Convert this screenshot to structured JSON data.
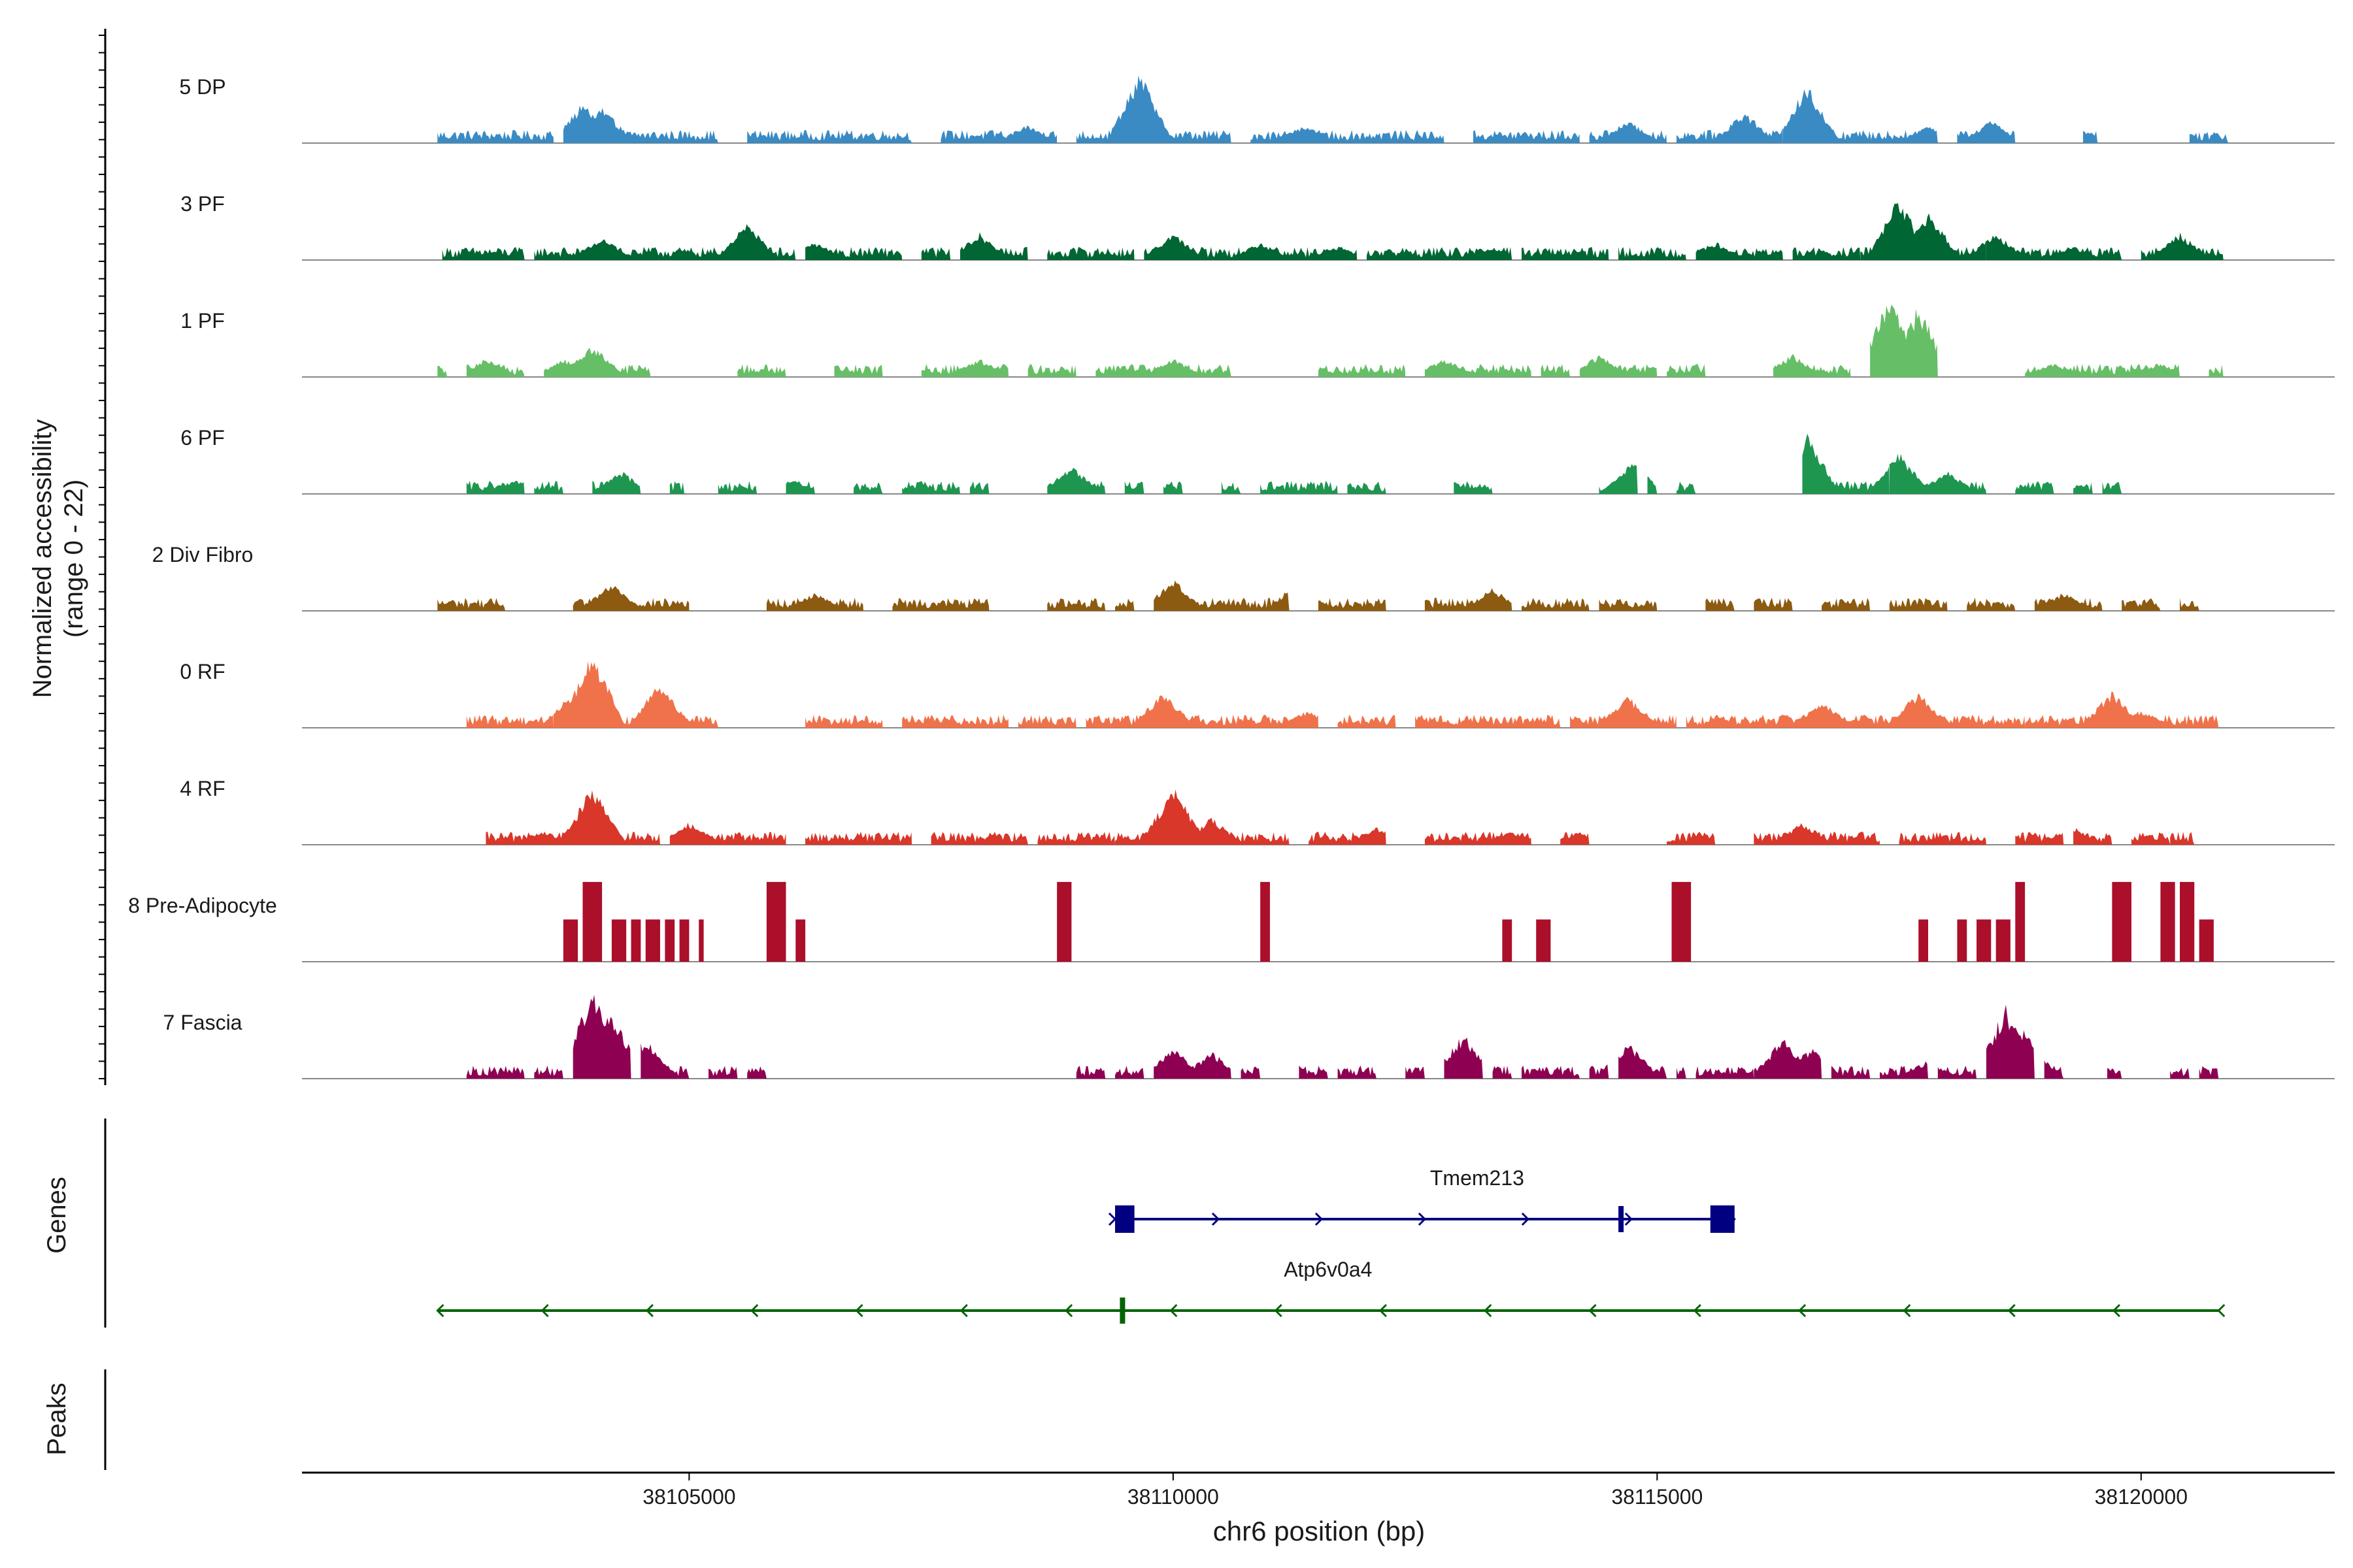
{
  "chart_data": {
    "type": "area",
    "title": "",
    "chromosome": "chr6",
    "xlabel": "chr6 position (bp)",
    "ylabel": "Normalized accessibility",
    "ylabel_range": "(range 0 - 22)",
    "xlim": [
      38101000,
      38122000
    ],
    "ylim": [
      0,
      22
    ],
    "x_ticks": [
      38105000,
      38110000,
      38115000,
      38120000
    ],
    "x_tick_labels": [
      "38105000",
      "38110000",
      "38115000",
      "38120000"
    ],
    "tracks": [
      {
        "name": "5 DP",
        "color": "#3a8bc4",
        "regions": [
          [
            38102400,
            38103600
          ],
          [
            38103700,
            38105300
          ],
          [
            38105600,
            38107300
          ],
          [
            38107600,
            38108800
          ],
          [
            38109000,
            38110600
          ],
          [
            38110800,
            38112800
          ],
          [
            38113100,
            38114200
          ],
          [
            38114300,
            38115100
          ],
          [
            38115200,
            38116300
          ],
          [
            38116300,
            38117900
          ],
          [
            38118100,
            38118700
          ],
          [
            38119400,
            38119550
          ],
          [
            38120500,
            38120900
          ]
        ],
        "peaks": [
          [
            38103900,
            9
          ],
          [
            38104100,
            8
          ],
          [
            38108500,
            4
          ],
          [
            38109650,
            16
          ],
          [
            38111350,
            4
          ],
          [
            38114700,
            5
          ],
          [
            38115900,
            7
          ],
          [
            38116550,
            13
          ],
          [
            38117800,
            4
          ],
          [
            38118450,
            5
          ],
          [
            38119400,
            3
          ]
        ]
      },
      {
        "name": "3 PF",
        "color": "#006633",
        "regions": [
          [
            38102450,
            38103300
          ],
          [
            38103400,
            38106100
          ],
          [
            38106200,
            38107200
          ],
          [
            38107400,
            38107700
          ],
          [
            38107800,
            38108500
          ],
          [
            38108700,
            38109600
          ],
          [
            38109700,
            38111900
          ],
          [
            38112000,
            38113500
          ],
          [
            38113600,
            38114500
          ],
          [
            38114600,
            38115300
          ],
          [
            38115400,
            38116300
          ],
          [
            38116400,
            38117100
          ],
          [
            38117100,
            38118400
          ],
          [
            38118400,
            38119800
          ],
          [
            38120000,
            38120850
          ]
        ],
        "peaks": [
          [
            38104100,
            5
          ],
          [
            38105600,
            8
          ],
          [
            38106300,
            4
          ],
          [
            38108000,
            6
          ],
          [
            38110000,
            6
          ],
          [
            38110900,
            4
          ],
          [
            38111700,
            3
          ],
          [
            38113300,
            3
          ],
          [
            38115600,
            4
          ],
          [
            38117500,
            14
          ],
          [
            38117800,
            11
          ],
          [
            38118500,
            6
          ],
          [
            38119300,
            3
          ],
          [
            38120400,
            6
          ]
        ]
      },
      {
        "name": "1 PF",
        "color": "#66bf66",
        "regions": [
          [
            38102400,
            38102500
          ],
          [
            38102700,
            38103300
          ],
          [
            38103500,
            38104600
          ],
          [
            38105500,
            38106000
          ],
          [
            38106500,
            38107000
          ],
          [
            38107400,
            38108300
          ],
          [
            38108500,
            38109000
          ],
          [
            38109200,
            38110600
          ],
          [
            38111500,
            38112400
          ],
          [
            38112600,
            38113700
          ],
          [
            38113800,
            38114100
          ],
          [
            38114200,
            38115000
          ],
          [
            38115100,
            38115500
          ],
          [
            38116200,
            38117000
          ],
          [
            38117200,
            38117900
          ],
          [
            38118800,
            38120400
          ],
          [
            38120700,
            38120850
          ]
        ],
        "peaks": [
          [
            38102900,
            4
          ],
          [
            38103700,
            4
          ],
          [
            38104000,
            7
          ],
          [
            38106200,
            4
          ],
          [
            38108000,
            4
          ],
          [
            38110000,
            4
          ],
          [
            38112800,
            4
          ],
          [
            38114400,
            5
          ],
          [
            38116400,
            5
          ],
          [
            38117400,
            18
          ],
          [
            38117700,
            16
          ],
          [
            38119100,
            3
          ],
          [
            38120200,
            3
          ]
        ]
      },
      {
        "name": "6 PF",
        "color": "#1e9650",
        "regions": [
          [
            38102700,
            38103300
          ],
          [
            38103400,
            38103700
          ],
          [
            38104000,
            38104500
          ],
          [
            38104800,
            38104950
          ],
          [
            38105300,
            38105700
          ],
          [
            38106000,
            38106300
          ],
          [
            38106700,
            38107000
          ],
          [
            38107200,
            38107800
          ],
          [
            38107900,
            38108100
          ],
          [
            38108700,
            38109300
          ],
          [
            38109500,
            38109700
          ],
          [
            38109900,
            38110100
          ],
          [
            38110500,
            38110700
          ],
          [
            38110900,
            38111700
          ],
          [
            38111800,
            38112200
          ],
          [
            38112900,
            38113300
          ],
          [
            38114400,
            38114800
          ],
          [
            38114900,
            38115000
          ],
          [
            38115200,
            38115400
          ],
          [
            38116500,
            38117400
          ],
          [
            38117400,
            38118400
          ],
          [
            38118700,
            38119100
          ],
          [
            38119300,
            38119500
          ],
          [
            38119600,
            38119800
          ]
        ],
        "peaks": [
          [
            38103200,
            3
          ],
          [
            38104300,
            5
          ],
          [
            38106100,
            3
          ],
          [
            38108950,
            6
          ],
          [
            38109400,
            3
          ],
          [
            38114750,
            7
          ],
          [
            38116550,
            13
          ],
          [
            38117500,
            9
          ],
          [
            38118000,
            5
          ]
        ]
      },
      {
        "name": "2 Div Fibro",
        "color": "#8c5a10",
        "regions": [
          [
            38102400,
            38103100
          ],
          [
            38103800,
            38105000
          ],
          [
            38105800,
            38106800
          ],
          [
            38107100,
            38108100
          ],
          [
            38108700,
            38109300
          ],
          [
            38109400,
            38109600
          ],
          [
            38109800,
            38111200
          ],
          [
            38111500,
            38112200
          ],
          [
            38112600,
            38113500
          ],
          [
            38113600,
            38114300
          ],
          [
            38114400,
            38115000
          ],
          [
            38115500,
            38115800
          ],
          [
            38116000,
            38116400
          ],
          [
            38116700,
            38117200
          ],
          [
            38117400,
            38118000
          ],
          [
            38118200,
            38118700
          ],
          [
            38118900,
            38119600
          ],
          [
            38119800,
            38120200
          ],
          [
            38120400,
            38120600
          ]
        ],
        "peaks": [
          [
            38104200,
            6
          ],
          [
            38106300,
            4
          ],
          [
            38110000,
            7
          ],
          [
            38111300,
            7
          ],
          [
            38113300,
            5
          ],
          [
            38115300,
            5
          ],
          [
            38119200,
            4
          ]
        ]
      },
      {
        "name": "0 RF",
        "color": "#f0724a",
        "regions": [
          [
            38102700,
            38103600
          ],
          [
            38103600,
            38105300
          ],
          [
            38106200,
            38107000
          ],
          [
            38107200,
            38108300
          ],
          [
            38108400,
            38109000
          ],
          [
            38109100,
            38111500
          ],
          [
            38111700,
            38112300
          ],
          [
            38112500,
            38114000
          ],
          [
            38114100,
            38115200
          ],
          [
            38115300,
            38118800
          ],
          [
            38118800,
            38120800
          ]
        ],
        "peaks": [
          [
            38104000,
            17
          ],
          [
            38103800,
            8
          ],
          [
            38104700,
            10
          ],
          [
            38109900,
            8
          ],
          [
            38111400,
            4
          ],
          [
            38114700,
            7
          ],
          [
            38116700,
            6
          ],
          [
            38117700,
            8
          ],
          [
            38119700,
            8
          ],
          [
            38120000,
            4
          ]
        ]
      },
      {
        "name": "4 RF",
        "color": "#d8372a",
        "regions": [
          [
            38102900,
            38104700
          ],
          [
            38104800,
            38106000
          ],
          [
            38106200,
            38107300
          ],
          [
            38107500,
            38108500
          ],
          [
            38108600,
            38109400
          ],
          [
            38109400,
            38111200
          ],
          [
            38111400,
            38112200
          ],
          [
            38112600,
            38113700
          ],
          [
            38114000,
            38114300
          ],
          [
            38115100,
            38115600
          ],
          [
            38116000,
            38117300
          ],
          [
            38117500,
            38118400
          ],
          [
            38118700,
            38119200
          ],
          [
            38119300,
            38119700
          ],
          [
            38119900,
            38120300
          ],
          [
            38120300,
            38120550
          ]
        ],
        "peaks": [
          [
            38104000,
            13
          ],
          [
            38103500,
            3
          ],
          [
            38105000,
            5
          ],
          [
            38110000,
            13
          ],
          [
            38110400,
            6
          ],
          [
            38112100,
            4
          ],
          [
            38113500,
            3
          ],
          [
            38114200,
            3
          ],
          [
            38116500,
            5
          ],
          [
            38119300,
            4
          ]
        ]
      },
      {
        "name": "8 Pre-Adipocyte",
        "color": "#ab0f2a",
        "regions": [
          [
            38103700,
            38103850
          ],
          [
            38103900,
            38104100
          ],
          [
            38104200,
            38104350
          ],
          [
            38104400,
            38104500
          ],
          [
            38104550,
            38104700
          ],
          [
            38104750,
            38104850
          ],
          [
            38104900,
            38105000
          ],
          [
            38105100,
            38105150
          ],
          [
            38105800,
            38106000
          ],
          [
            38106100,
            38106200
          ],
          [
            38108800,
            38108950
          ],
          [
            38110900,
            38111000
          ],
          [
            38113400,
            38113500
          ],
          [
            38113750,
            38113900
          ],
          [
            38115150,
            38115350
          ],
          [
            38117700,
            38117800
          ],
          [
            38118100,
            38118200
          ],
          [
            38118300,
            38118450
          ],
          [
            38118500,
            38118650
          ],
          [
            38118700,
            38118800
          ],
          [
            38119700,
            38119900
          ],
          [
            38120200,
            38120350
          ],
          [
            38120400,
            38120550
          ],
          [
            38120600,
            38120750
          ]
        ],
        "block_heights": [
          9,
          17,
          9,
          9,
          9,
          9,
          9,
          9,
          17,
          9,
          17,
          17,
          9,
          9,
          17,
          9,
          9,
          9,
          9,
          17,
          17,
          17,
          17,
          9
        ]
      },
      {
        "name": "7 Fascia",
        "color": "#8e0152",
        "regions": [
          [
            38102700,
            38103300
          ],
          [
            38103400,
            38103700
          ],
          [
            38103800,
            38104400
          ],
          [
            38104500,
            38105000
          ],
          [
            38105200,
            38105500
          ],
          [
            38105600,
            38105800
          ],
          [
            38109000,
            38109300
          ],
          [
            38109400,
            38109700
          ],
          [
            38109800,
            38110600
          ],
          [
            38110700,
            38110900
          ],
          [
            38111300,
            38111600
          ],
          [
            38111700,
            38112100
          ],
          [
            38112400,
            38112600
          ],
          [
            38112800,
            38113200
          ],
          [
            38113300,
            38113500
          ],
          [
            38113600,
            38114200
          ],
          [
            38114300,
            38114500
          ],
          [
            38114600,
            38115100
          ],
          [
            38115200,
            38115300
          ],
          [
            38115400,
            38116000
          ],
          [
            38116000,
            38116700
          ],
          [
            38116800,
            38117200
          ],
          [
            38117300,
            38117800
          ],
          [
            38117900,
            38118300
          ],
          [
            38118400,
            38118900
          ],
          [
            38119000,
            38119200
          ],
          [
            38119650,
            38119800
          ],
          [
            38120300,
            38120500
          ],
          [
            38120600,
            38120800
          ]
        ],
        "peaks": [
          [
            38104000,
            20
          ],
          [
            38104200,
            15
          ],
          [
            38104550,
            9
          ],
          [
            38110000,
            7
          ],
          [
            38110400,
            6
          ],
          [
            38113000,
            10
          ],
          [
            38114700,
            8
          ],
          [
            38116300,
            9
          ],
          [
            38116600,
            7
          ],
          [
            38117800,
            4
          ],
          [
            38118600,
            16
          ],
          [
            38118800,
            11
          ]
        ]
      }
    ],
    "genes": [
      {
        "name": "Tmem213",
        "strand": "+",
        "color": "#000080",
        "start": 38109400,
        "end": 38115800,
        "exons": [
          [
            38109400,
            38109600
          ],
          [
            38114600,
            38114650
          ],
          [
            38115550,
            38115800
          ]
        ]
      },
      {
        "name": "Atp6v0a4",
        "strand": "-",
        "color": "#006400",
        "start": 38102400,
        "end": 38120800,
        "exons": [
          [
            38109450,
            38109500
          ]
        ]
      }
    ],
    "panels": [
      {
        "name": "Genes"
      },
      {
        "name": "Peaks"
      }
    ]
  }
}
